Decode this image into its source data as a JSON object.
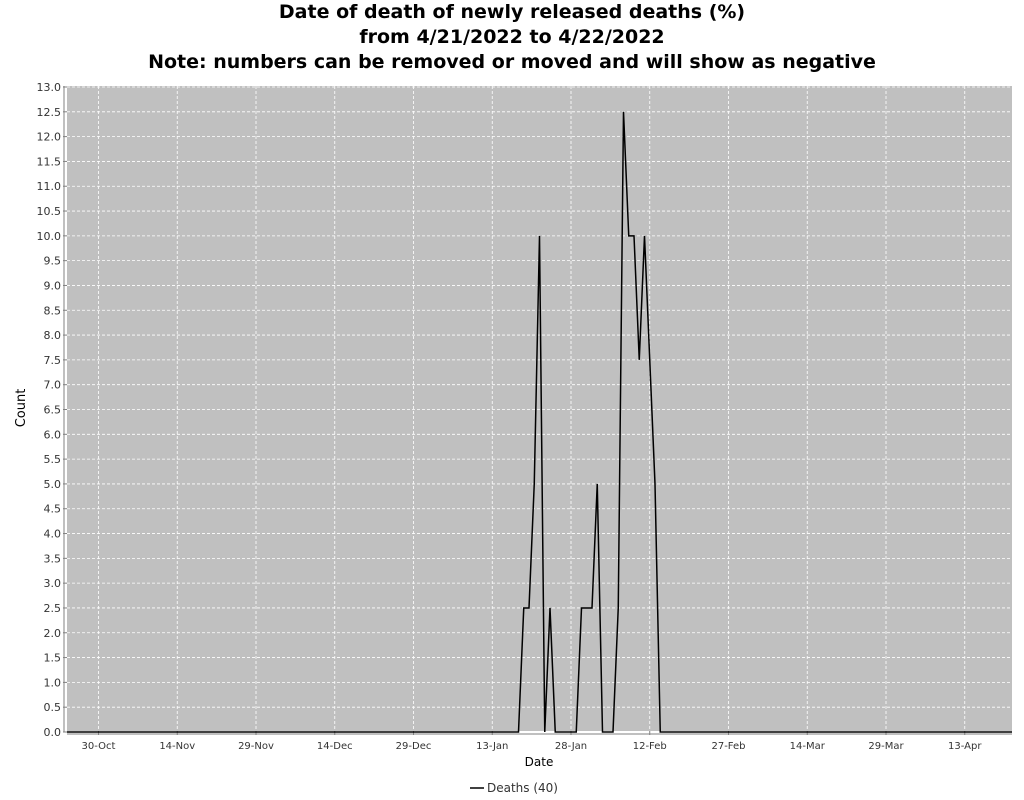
{
  "chart_data": {
    "type": "line",
    "title": [
      "Date of death of newly released deaths (%)",
      "from 4/21/2022 to 4/22/2022",
      "Note: numbers can be removed or moved and will show as negative"
    ],
    "xlabel": "Date",
    "ylabel": "Count",
    "xlim": [
      "2021-10-24",
      "2022-04-22"
    ],
    "ylim": [
      0,
      13
    ],
    "x_ticks": [
      {
        "date": "2021-10-30",
        "label": "30-Oct"
      },
      {
        "date": "2021-11-14",
        "label": "14-Nov"
      },
      {
        "date": "2021-11-29",
        "label": "29-Nov"
      },
      {
        "date": "2021-12-14",
        "label": "14-Dec"
      },
      {
        "date": "2021-12-29",
        "label": "29-Dec"
      },
      {
        "date": "2022-01-13",
        "label": "13-Jan"
      },
      {
        "date": "2022-01-28",
        "label": "28-Jan"
      },
      {
        "date": "2022-02-12",
        "label": "12-Feb"
      },
      {
        "date": "2022-02-27",
        "label": "27-Feb"
      },
      {
        "date": "2022-03-14",
        "label": "14-Mar"
      },
      {
        "date": "2022-03-29",
        "label": "29-Mar"
      },
      {
        "date": "2022-04-13",
        "label": "13-Apr"
      }
    ],
    "y_ticks": [
      "0.0",
      "0.5",
      "1.0",
      "1.5",
      "2.0",
      "2.5",
      "3.0",
      "3.5",
      "4.0",
      "4.5",
      "5.0",
      "5.5",
      "6.0",
      "6.5",
      "7.0",
      "7.5",
      "8.0",
      "8.5",
      "9.0",
      "9.5",
      "10.0",
      "10.5",
      "11.0",
      "11.5",
      "12.0",
      "12.5",
      "13.0"
    ],
    "grid": true,
    "legend": "bottom",
    "series": [
      {
        "name": "Deaths (40)",
        "color": "#000000",
        "points": [
          [
            "2021-10-24",
            0
          ],
          [
            "2022-01-18",
            0
          ],
          [
            "2022-01-19",
            2.5
          ],
          [
            "2022-01-20",
            2.5
          ],
          [
            "2022-01-21",
            5
          ],
          [
            "2022-01-22",
            10
          ],
          [
            "2022-01-23",
            0
          ],
          [
            "2022-01-24",
            2.5
          ],
          [
            "2022-01-25",
            0
          ],
          [
            "2022-01-29",
            0
          ],
          [
            "2022-01-30",
            2.5
          ],
          [
            "2022-01-31",
            2.5
          ],
          [
            "2022-02-01",
            2.5
          ],
          [
            "2022-02-02",
            5
          ],
          [
            "2022-02-03",
            0
          ],
          [
            "2022-02-05",
            0
          ],
          [
            "2022-02-06",
            2.5
          ],
          [
            "2022-02-07",
            12.5
          ],
          [
            "2022-02-08",
            10
          ],
          [
            "2022-02-09",
            10
          ],
          [
            "2022-02-10",
            7.5
          ],
          [
            "2022-02-11",
            10
          ],
          [
            "2022-02-12",
            7.5
          ],
          [
            "2022-02-13",
            5
          ],
          [
            "2022-02-14",
            0
          ],
          [
            "2022-04-22",
            0
          ]
        ]
      }
    ]
  }
}
